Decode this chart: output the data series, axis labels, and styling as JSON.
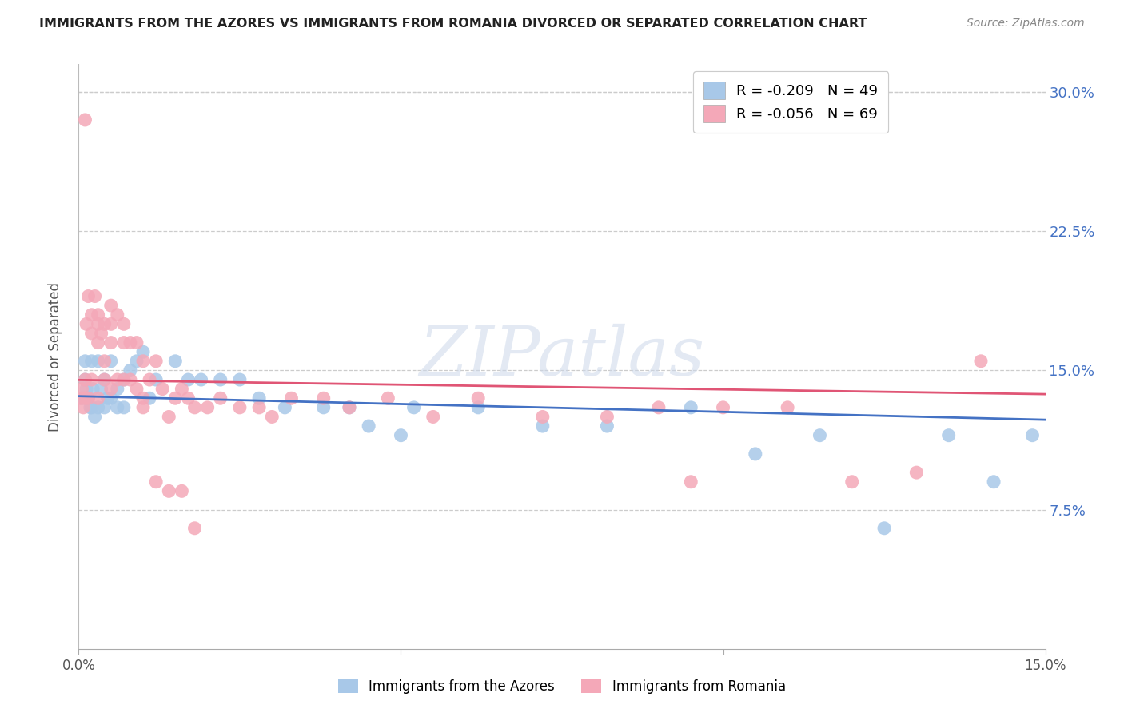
{
  "title": "IMMIGRANTS FROM THE AZORES VS IMMIGRANTS FROM ROMANIA DIVORCED OR SEPARATED CORRELATION CHART",
  "source": "Source: ZipAtlas.com",
  "ylabel": "Divorced or Separated",
  "xlim": [
    0.0,
    0.15
  ],
  "ylim": [
    0.0,
    0.315
  ],
  "yticks": [
    0.075,
    0.15,
    0.225,
    0.3
  ],
  "ytick_labels": [
    "7.5%",
    "15.0%",
    "22.5%",
    "30.0%"
  ],
  "azores_color": "#a8c8e8",
  "azores_line_color": "#4472c4",
  "romania_color": "#f4a8b8",
  "romania_line_color": "#e05575",
  "R_azores": -0.209,
  "N_azores": 49,
  "R_romania": -0.056,
  "N_romania": 69,
  "azores_x": [
    0.0005,
    0.001,
    0.001,
    0.0012,
    0.0015,
    0.0018,
    0.002,
    0.002,
    0.0022,
    0.0025,
    0.003,
    0.003,
    0.0035,
    0.004,
    0.004,
    0.0045,
    0.005,
    0.005,
    0.006,
    0.006,
    0.007,
    0.007,
    0.008,
    0.009,
    0.01,
    0.011,
    0.012,
    0.015,
    0.017,
    0.019,
    0.022,
    0.025,
    0.028,
    0.032,
    0.038,
    0.045,
    0.052,
    0.062,
    0.072,
    0.082,
    0.095,
    0.105,
    0.115,
    0.125,
    0.135,
    0.142,
    0.148,
    0.05,
    0.042
  ],
  "azores_y": [
    0.135,
    0.155,
    0.145,
    0.14,
    0.135,
    0.13,
    0.155,
    0.13,
    0.14,
    0.125,
    0.155,
    0.13,
    0.14,
    0.145,
    0.13,
    0.135,
    0.155,
    0.135,
    0.14,
    0.13,
    0.145,
    0.13,
    0.15,
    0.155,
    0.16,
    0.135,
    0.145,
    0.155,
    0.145,
    0.145,
    0.145,
    0.145,
    0.135,
    0.13,
    0.13,
    0.12,
    0.13,
    0.13,
    0.12,
    0.12,
    0.13,
    0.105,
    0.115,
    0.065,
    0.115,
    0.09,
    0.115,
    0.115,
    0.13
  ],
  "romania_x": [
    0.0003,
    0.0005,
    0.0007,
    0.001,
    0.001,
    0.001,
    0.0012,
    0.0015,
    0.0015,
    0.002,
    0.002,
    0.002,
    0.0025,
    0.003,
    0.003,
    0.003,
    0.003,
    0.0035,
    0.004,
    0.004,
    0.004,
    0.005,
    0.005,
    0.005,
    0.005,
    0.006,
    0.006,
    0.007,
    0.007,
    0.007,
    0.008,
    0.008,
    0.009,
    0.009,
    0.01,
    0.01,
    0.011,
    0.012,
    0.013,
    0.014,
    0.015,
    0.016,
    0.017,
    0.018,
    0.02,
    0.022,
    0.025,
    0.028,
    0.03,
    0.033,
    0.038,
    0.042,
    0.048,
    0.055,
    0.062,
    0.072,
    0.082,
    0.09,
    0.095,
    0.1,
    0.11,
    0.12,
    0.13,
    0.14,
    0.01,
    0.012,
    0.014,
    0.016,
    0.018
  ],
  "romania_y": [
    0.135,
    0.14,
    0.13,
    0.285,
    0.145,
    0.135,
    0.175,
    0.19,
    0.135,
    0.18,
    0.17,
    0.145,
    0.19,
    0.175,
    0.18,
    0.165,
    0.135,
    0.17,
    0.175,
    0.155,
    0.145,
    0.185,
    0.175,
    0.165,
    0.14,
    0.18,
    0.145,
    0.175,
    0.165,
    0.145,
    0.165,
    0.145,
    0.165,
    0.14,
    0.155,
    0.135,
    0.145,
    0.155,
    0.14,
    0.125,
    0.135,
    0.14,
    0.135,
    0.13,
    0.13,
    0.135,
    0.13,
    0.13,
    0.125,
    0.135,
    0.135,
    0.13,
    0.135,
    0.125,
    0.135,
    0.125,
    0.125,
    0.13,
    0.09,
    0.13,
    0.13,
    0.09,
    0.095,
    0.155,
    0.13,
    0.09,
    0.085,
    0.085,
    0.065
  ]
}
